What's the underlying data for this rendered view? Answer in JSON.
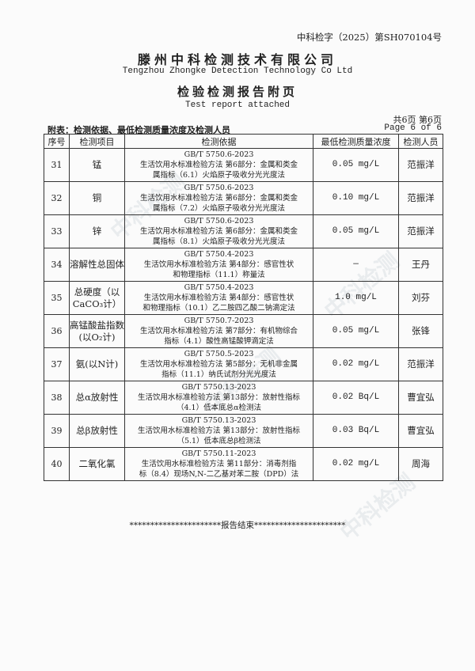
{
  "header": {
    "doc_number": "中科检字（2025）第SH070104号",
    "company_cn": "滕州中科检测技术有限公司",
    "company_en": "Tengzhou Zhongke Detection Technology Co Ltd",
    "title_cn": "检验检测报告附页",
    "title_en": "Test report attached",
    "pages_cn": "共6页 第6页",
    "pages_en": "Page 6 of 6",
    "caption": "附表：检测依据、最低检测质量浓度及检测人员"
  },
  "watermark": "中科检测",
  "table": {
    "columns": [
      "序号",
      "检测项目",
      "检测依据",
      "最低检测质量浓度",
      "检测人员"
    ],
    "rows": [
      {
        "no": "31",
        "item": "锰",
        "std": "GB/T 5750.6-2023",
        "method1": "生活饮用水标准检验方法 第6部分：金属和类金",
        "method2": "属指标（6.1）火焰原子吸收分光光度法",
        "limit": "0.05 mg/L",
        "person": "范振洋"
      },
      {
        "no": "32",
        "item": "铜",
        "std": "GB/T 5750.6-2023",
        "method1": "生活饮用水标准检验方法 第6部分：金属和类金",
        "method2": "属指标（7.2）火焰原子吸收分光光度法",
        "limit": "0.10 mg/L",
        "person": "范振洋"
      },
      {
        "no": "33",
        "item": "锌",
        "std": "GB/T 5750.6-2023",
        "method1": "生活饮用水标准检验方法 第6部分：金属和类金",
        "method2": "属指标（8.1）火焰原子吸收分光光度法",
        "limit": "0.05 mg/L",
        "person": "范振洋"
      },
      {
        "no": "34",
        "item": "溶解性总固体",
        "std": "GB/T 5750.4-2023",
        "method1": "生活饮用水标准检验方法 第4部分：感官性状",
        "method2": "和物理指标（11.1）称量法",
        "limit": "—",
        "person": "王丹"
      },
      {
        "no": "35",
        "item": "总硬度（以CaCO₃计）",
        "std": "GB/T 5750.4-2023",
        "method1": "生活饮用水标准检验方法 第4部分：感官性状",
        "method2": "和物理指标（10.1）乙二胺四乙酸二钠滴定法",
        "limit": "1.0 mg/L",
        "person": "刘芬"
      },
      {
        "no": "36",
        "item": "高锰酸盐指数(以O₂计)",
        "std": "GB/T 5750.7-2023",
        "method1": "生活饮用水标准检验方法 第7部分：有机物综合",
        "method2": "指标（4.1）酸性高锰酸钾滴定法",
        "limit": "0.05 mg/L",
        "person": "张锋"
      },
      {
        "no": "37",
        "item": "氨(以N计)",
        "std": "GB/T 5750.5-2023",
        "method1": "生活饮用水标准检验方法 第5部分：无机非金属",
        "method2": "指标（11.1）纳氏试剂分光光度法",
        "limit": "0.02 mg/L",
        "person": "范振洋"
      },
      {
        "no": "38",
        "item": "总α放射性",
        "std": "GB/T 5750.13-2023",
        "method1": "生活饮用水标准检验方法 第13部分：放射性指标",
        "method2": "（4.1）低本底总α检测法",
        "limit": "0.02 Bq/L",
        "person": "曹宜弘"
      },
      {
        "no": "39",
        "item": "总β放射性",
        "std": "GB/T 5750.13-2023",
        "method1": "生活饮用水标准检验方法 第13部分：放射性指标",
        "method2": "（5.1）低本底总β检测法",
        "limit": "0.03 Bq/L",
        "person": "曹宜弘"
      },
      {
        "no": "40",
        "item": "二氧化氯",
        "std": "GB/T 5750.11-2023",
        "method1": "生活饮用水标准检验方法 第11部分：消毒剂指",
        "method2": "标（8.4）现场N,N-二乙基对苯二胺（DPD）法",
        "limit": "0.02 mg/L",
        "person": "周海"
      }
    ]
  },
  "footer": {
    "end_text": "**********************报告结束**********************"
  }
}
